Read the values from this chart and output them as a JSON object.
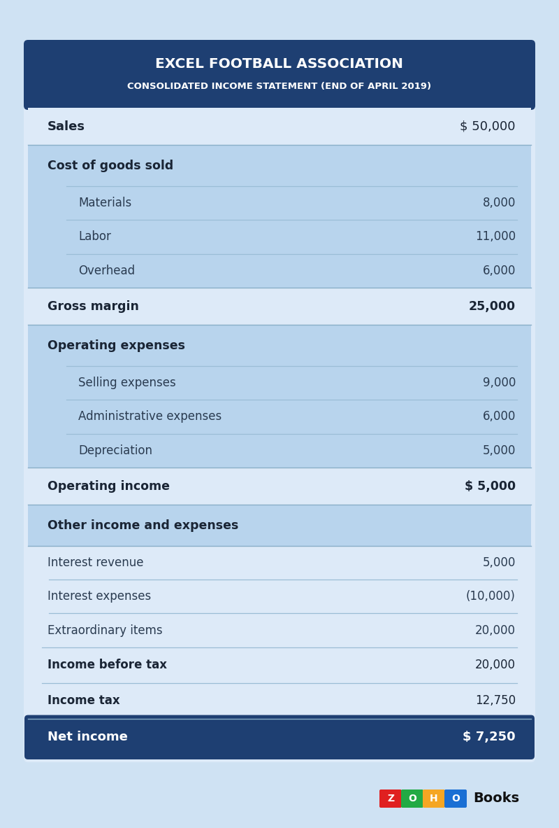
{
  "title_line1": "EXCEL FOOTBALL ASSOCIATION",
  "title_line2": "CONSOLIDATED INCOME STATEMENT (END OF APRIL 2019)",
  "bg_color": "#cfe2f3",
  "header_bg": "#1e3f72",
  "header_text_color": "#ffffff",
  "section_bg_light": "#ddeaf8",
  "section_bg_medium": "#b8d4ed",
  "section_bg_dark": "#1e3f72",
  "row_sep_color": "#9bbdd6",
  "rows": [
    {
      "label": "Sales",
      "value": "$ 50,000",
      "type": "top_level",
      "bold_label": true,
      "bold_value": false,
      "bg": "light",
      "sep_above": false,
      "indent": false
    },
    {
      "label": "Cost of goods sold",
      "value": "",
      "type": "section_header",
      "bold_label": true,
      "bold_value": false,
      "bg": "medium",
      "sep_above": false,
      "indent": false
    },
    {
      "label": "Materials",
      "value": "8,000",
      "type": "sub_item",
      "bold_label": false,
      "bold_value": false,
      "bg": "medium",
      "sep_above": true,
      "indent": true
    },
    {
      "label": "Labor",
      "value": "11,000",
      "type": "sub_item",
      "bold_label": false,
      "bold_value": false,
      "bg": "medium",
      "sep_above": true,
      "indent": true
    },
    {
      "label": "Overhead",
      "value": "6,000",
      "type": "sub_item",
      "bold_label": false,
      "bold_value": false,
      "bg": "medium",
      "sep_above": true,
      "indent": true
    },
    {
      "label": "Gross margin",
      "value": "25,000",
      "type": "summary",
      "bold_label": true,
      "bold_value": true,
      "bg": "light",
      "sep_above": false,
      "indent": false
    },
    {
      "label": "Operating expenses",
      "value": "",
      "type": "section_header",
      "bold_label": true,
      "bold_value": false,
      "bg": "medium",
      "sep_above": false,
      "indent": false
    },
    {
      "label": "Selling expenses",
      "value": "9,000",
      "type": "sub_item",
      "bold_label": false,
      "bold_value": false,
      "bg": "medium",
      "sep_above": true,
      "indent": true
    },
    {
      "label": "Administrative expenses",
      "value": "6,000",
      "type": "sub_item",
      "bold_label": false,
      "bold_value": false,
      "bg": "medium",
      "sep_above": true,
      "indent": true
    },
    {
      "label": "Depreciation",
      "value": "5,000",
      "type": "sub_item",
      "bold_label": false,
      "bold_value": false,
      "bg": "medium",
      "sep_above": true,
      "indent": true
    },
    {
      "label": "Operating income",
      "value": "$ 5,000",
      "type": "summary",
      "bold_label": true,
      "bold_value": true,
      "bg": "light",
      "sep_above": false,
      "indent": false
    },
    {
      "label": "Other income and expenses",
      "value": "",
      "type": "section_header",
      "bold_label": true,
      "bold_value": false,
      "bg": "medium",
      "sep_above": false,
      "indent": false
    },
    {
      "label": "Interest revenue",
      "value": "5,000",
      "type": "sub_item",
      "bold_label": false,
      "bold_value": false,
      "bg": "light",
      "sep_above": false,
      "indent": false
    },
    {
      "label": "Interest expenses",
      "value": "(10,000)",
      "type": "sub_item",
      "bold_label": false,
      "bold_value": false,
      "bg": "light",
      "sep_above": true,
      "indent": false
    },
    {
      "label": "Extraordinary items",
      "value": "20,000",
      "type": "sub_item",
      "bold_label": false,
      "bold_value": false,
      "bg": "light",
      "sep_above": true,
      "indent": false
    },
    {
      "label": "Income before tax",
      "value": "20,000",
      "type": "bold_row",
      "bold_label": true,
      "bold_value": false,
      "bg": "light",
      "sep_above": true,
      "indent": false
    },
    {
      "label": "Income tax",
      "value": "12,750",
      "type": "bold_row",
      "bold_label": true,
      "bold_value": false,
      "bg": "light",
      "sep_above": true,
      "indent": false
    },
    {
      "label": "Net income",
      "value": "$ 7,250",
      "type": "footer",
      "bold_label": true,
      "bold_value": true,
      "bg": "dark",
      "sep_above": false,
      "indent": false
    }
  ],
  "zoho_colors": [
    "#e02020",
    "#22aa44",
    "#f5a623",
    "#1a6fd4"
  ],
  "zoho_letters": [
    "Z",
    "O",
    "H",
    "O"
  ]
}
